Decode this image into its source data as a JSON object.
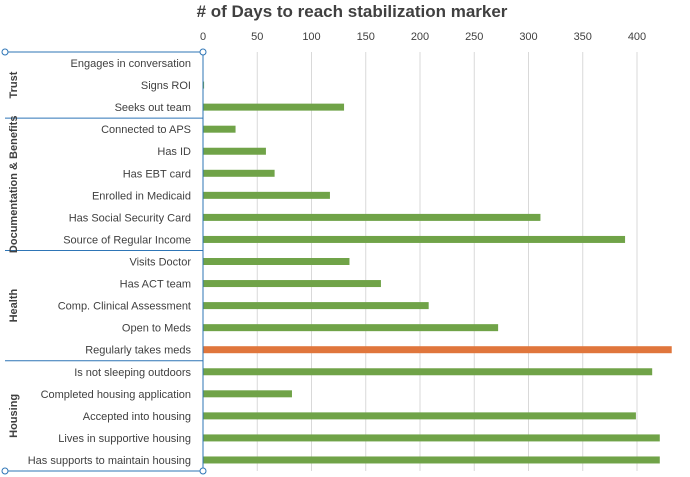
{
  "chart_data": {
    "type": "bar",
    "orientation": "horizontal",
    "title": "# of Days to reach stabilization marker",
    "xlabel": "",
    "ylabel": "",
    "xlim": [
      0,
      430
    ],
    "x_ticks": [
      "0",
      "50",
      "100",
      "150",
      "200",
      "250",
      "300",
      "350",
      "400"
    ],
    "grid": true,
    "groups": [
      {
        "label": "Trust",
        "count": 3
      },
      {
        "label": "Documentation & Benefits",
        "count": 6
      },
      {
        "label": "Health",
        "count": 5
      },
      {
        "label": "Housing",
        "count": 5
      }
    ],
    "categories": [
      "Engages in conversation",
      "Signs ROI",
      "Seeks out team",
      "Connected to APS",
      "Has ID",
      "Has EBT card",
      "Enrolled in Medicaid",
      "Has Social Security Card",
      "Source of Regular Income",
      "Visits Doctor",
      "Has ACT team",
      "Comp. Clinical Assessment",
      "Open to Meds",
      "Regularly takes meds",
      "Is not sleeping outdoors",
      "Completed housing application",
      "Accepted into housing",
      "Lives in supportive housing",
      "Has supports to maintain housing"
    ],
    "values": [
      0,
      1,
      130,
      30,
      58,
      66,
      117,
      311,
      389,
      135,
      164,
      208,
      272,
      432,
      414,
      82,
      399,
      421,
      421
    ],
    "colors": {
      "default": "#70a348",
      "highlight": "#e0763c",
      "axis": "#2e75b6",
      "grid": "#d9d9d9"
    },
    "highlight_index": 13
  }
}
